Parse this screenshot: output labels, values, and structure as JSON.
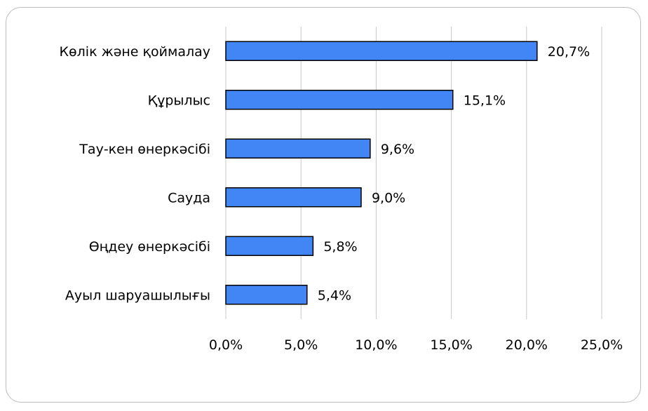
{
  "chart_data": {
    "type": "bar",
    "orientation": "horizontal",
    "categories": [
      "Көлік және қоймалау",
      "Құрылыс",
      "Тау-кен өнеркәсібі",
      "Сауда",
      "Өңдеу өнеркәсібі",
      "Ауыл шаруашылығы"
    ],
    "values": [
      20.7,
      15.1,
      9.6,
      9.0,
      5.8,
      5.4
    ],
    "value_labels": [
      "20,7%",
      "15,1%",
      "9,6%",
      "9,0%",
      "5,8%",
      "5,4%"
    ],
    "xlim": [
      0,
      25
    ],
    "xticks": [
      0,
      5,
      10,
      15,
      20,
      25
    ],
    "xtick_labels": [
      "0,0%",
      "5,0%",
      "10,0%",
      "15,0%",
      "20,0%",
      "25,0%"
    ],
    "title": "",
    "xlabel": "",
    "ylabel": "",
    "grid": "vertical",
    "bar_color": "#4285f4",
    "bar_edge_color": "#000000",
    "grid_color": "#c8c8c8"
  }
}
